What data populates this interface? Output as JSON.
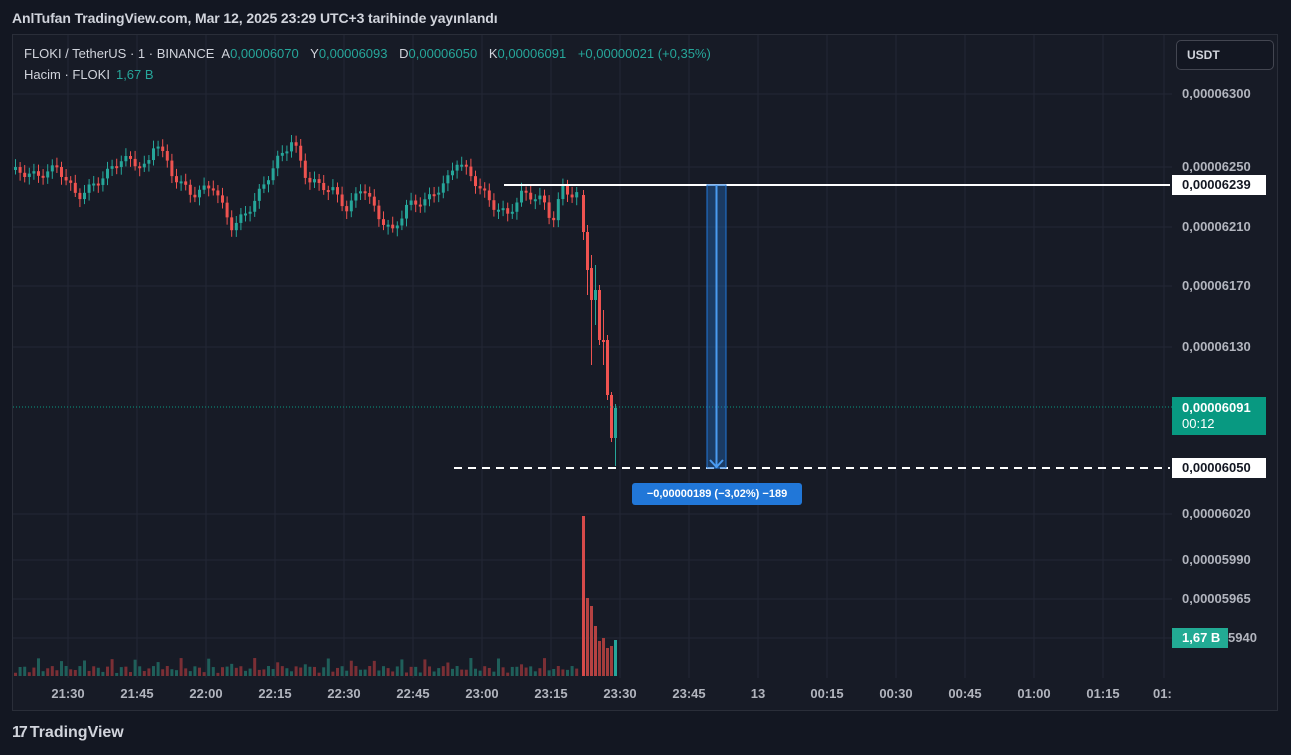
{
  "caption": "AnlTufan TradingView.com, Mar 12, 2025 23:29 UTC+3 tarihinde yayınlandı",
  "legend": {
    "symbol": "FLOKI / TetherUS · 1 · BINANCE",
    "open_key": "A",
    "open": "0,00006070",
    "high_key": "Y",
    "high": "0,00006093",
    "low_key": "D",
    "low": "0,00006050",
    "close_key": "K",
    "close": "0,00006091",
    "change": "+0,00000021 (+0,35%)"
  },
  "volume_legend": {
    "label": "Hacim · FLOKI",
    "value": "1,67 B"
  },
  "currency_button": "USDT",
  "price_axis": [
    "0,00006300",
    "0,00006250",
    "0,00006210",
    "0,00006170",
    "0,00006130",
    "0,00006020",
    "0,00005990",
    "0,00005965",
    "0,00005940"
  ],
  "time_axis": [
    "21:30",
    "21:45",
    "22:00",
    "22:15",
    "22:30",
    "22:45",
    "23:00",
    "23:15",
    "23:30",
    "23:45",
    "13",
    "00:15",
    "00:30",
    "00:45",
    "01:00",
    "01:15",
    "01:"
  ],
  "tags": {
    "high_line": "0,00006239",
    "current_price": "0,00006091",
    "countdown": "00:12",
    "low_line": "0,00006050",
    "volume": "1,67 B"
  },
  "measure": {
    "label": "−0,00000189 (−3,02%) −189"
  },
  "colors": {
    "up": "#26a69a",
    "down": "#ef5350",
    "background": "#171b26",
    "measure": "#2177d8"
  },
  "footer": {
    "brand": "TradingView",
    "icon": "tradingview-logo-icon"
  }
}
